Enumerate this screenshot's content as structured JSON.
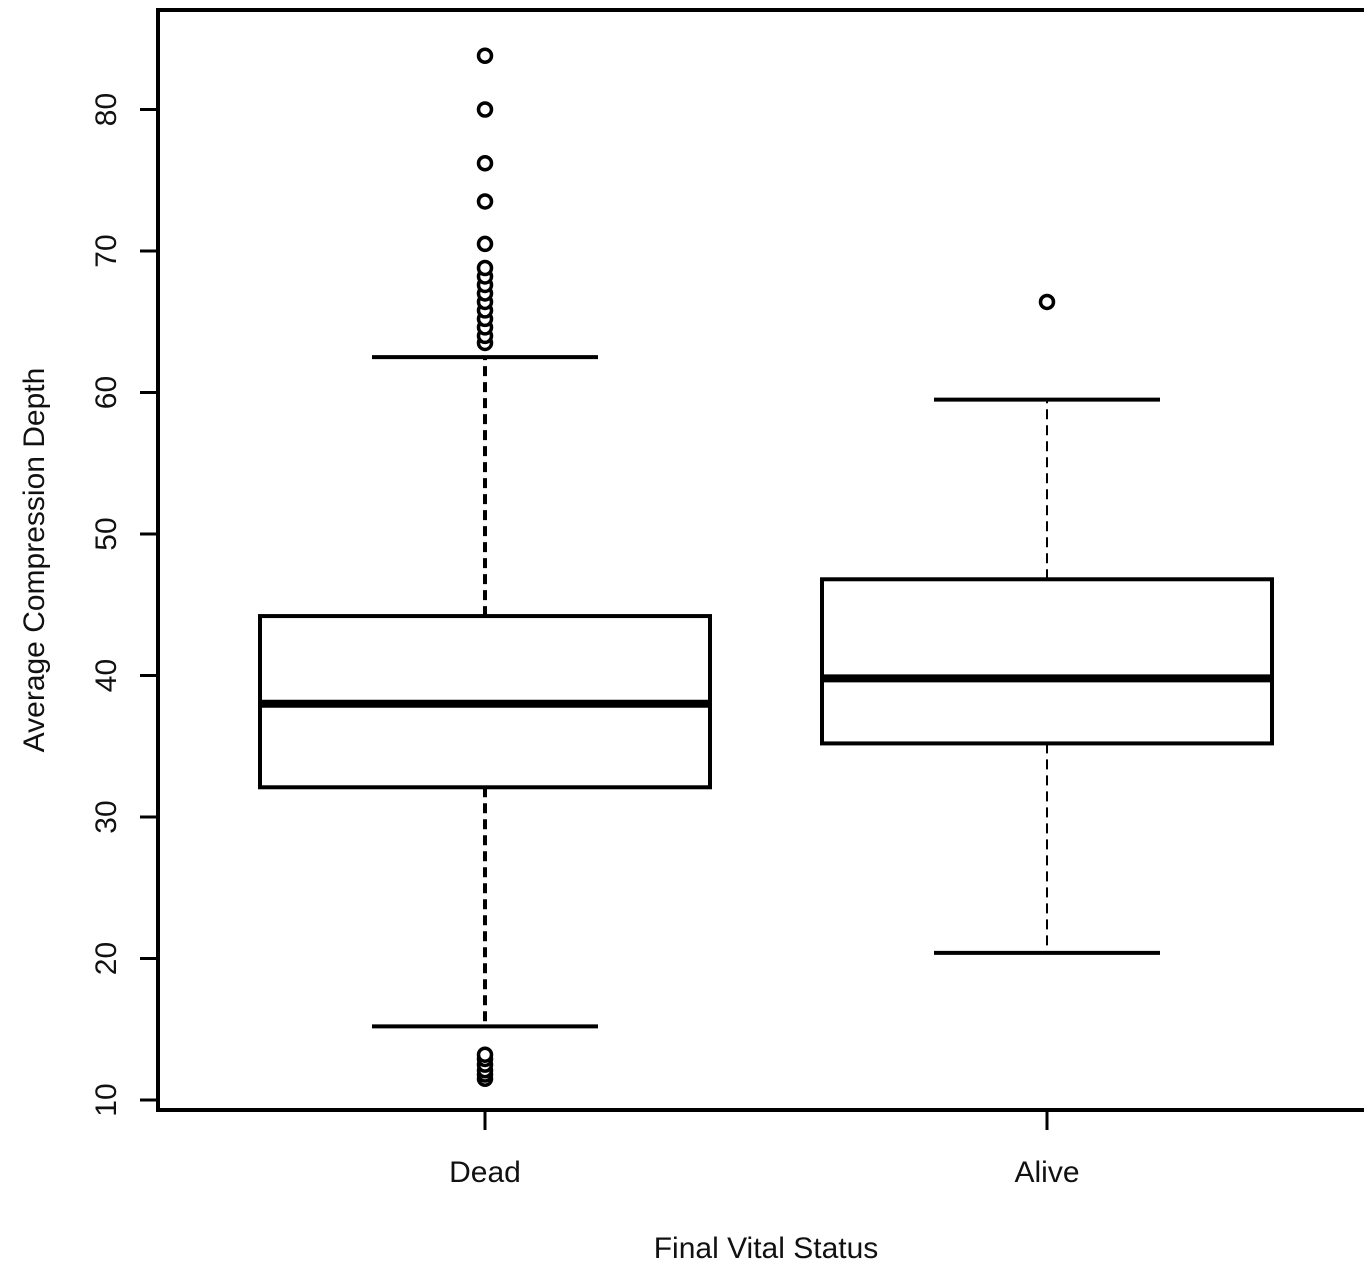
{
  "chart_data": {
    "type": "boxplot",
    "title": "",
    "xlabel": "Final Vital Status",
    "ylabel": "Average Compression Depth",
    "ylim": [
      8.7,
      86.5
    ],
    "yticks": [
      10,
      20,
      30,
      40,
      50,
      60,
      70,
      80
    ],
    "categories": [
      "Dead",
      "Alive"
    ],
    "boxes": [
      {
        "category": "Dead",
        "whisker_low": 15.2,
        "q1": 32.1,
        "median": 38.0,
        "q3": 44.2,
        "whisker_high": 62.5,
        "outliers": [
          11.5,
          11.8,
          12.1,
          12.5,
          12.9,
          13.2,
          63.5,
          64.0,
          64.6,
          65.2,
          65.8,
          66.4,
          67.0,
          67.6,
          68.2,
          68.8,
          70.5,
          73.5,
          76.2,
          80.0,
          83.8
        ]
      },
      {
        "category": "Alive",
        "whisker_low": 20.4,
        "q1": 35.2,
        "median": 39.8,
        "q3": 46.8,
        "whisker_high": 59.5,
        "outliers": [
          66.4
        ]
      }
    ]
  }
}
